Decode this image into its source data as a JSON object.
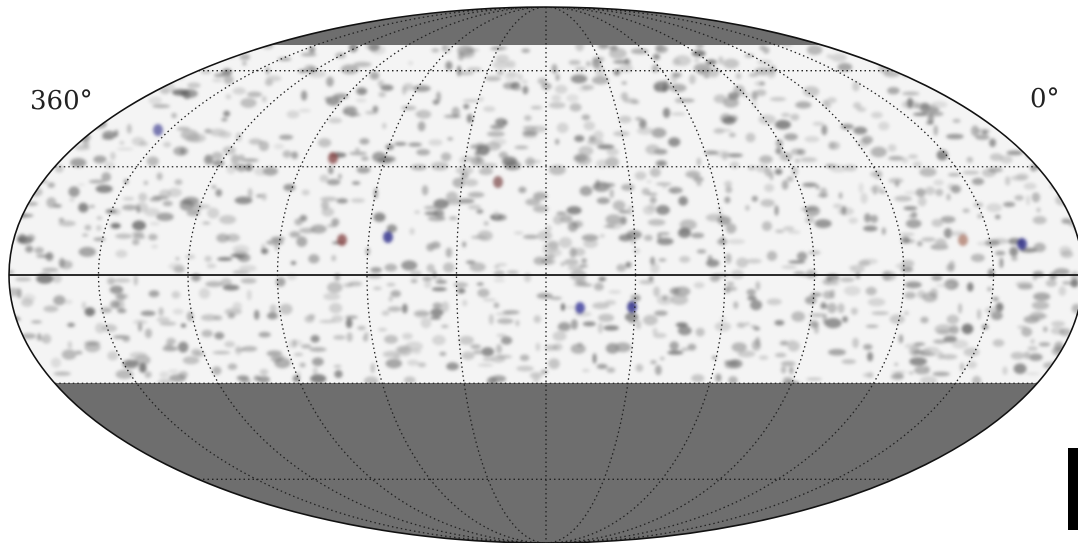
{
  "labels": {
    "left": "360°",
    "right": "0°"
  }
}
